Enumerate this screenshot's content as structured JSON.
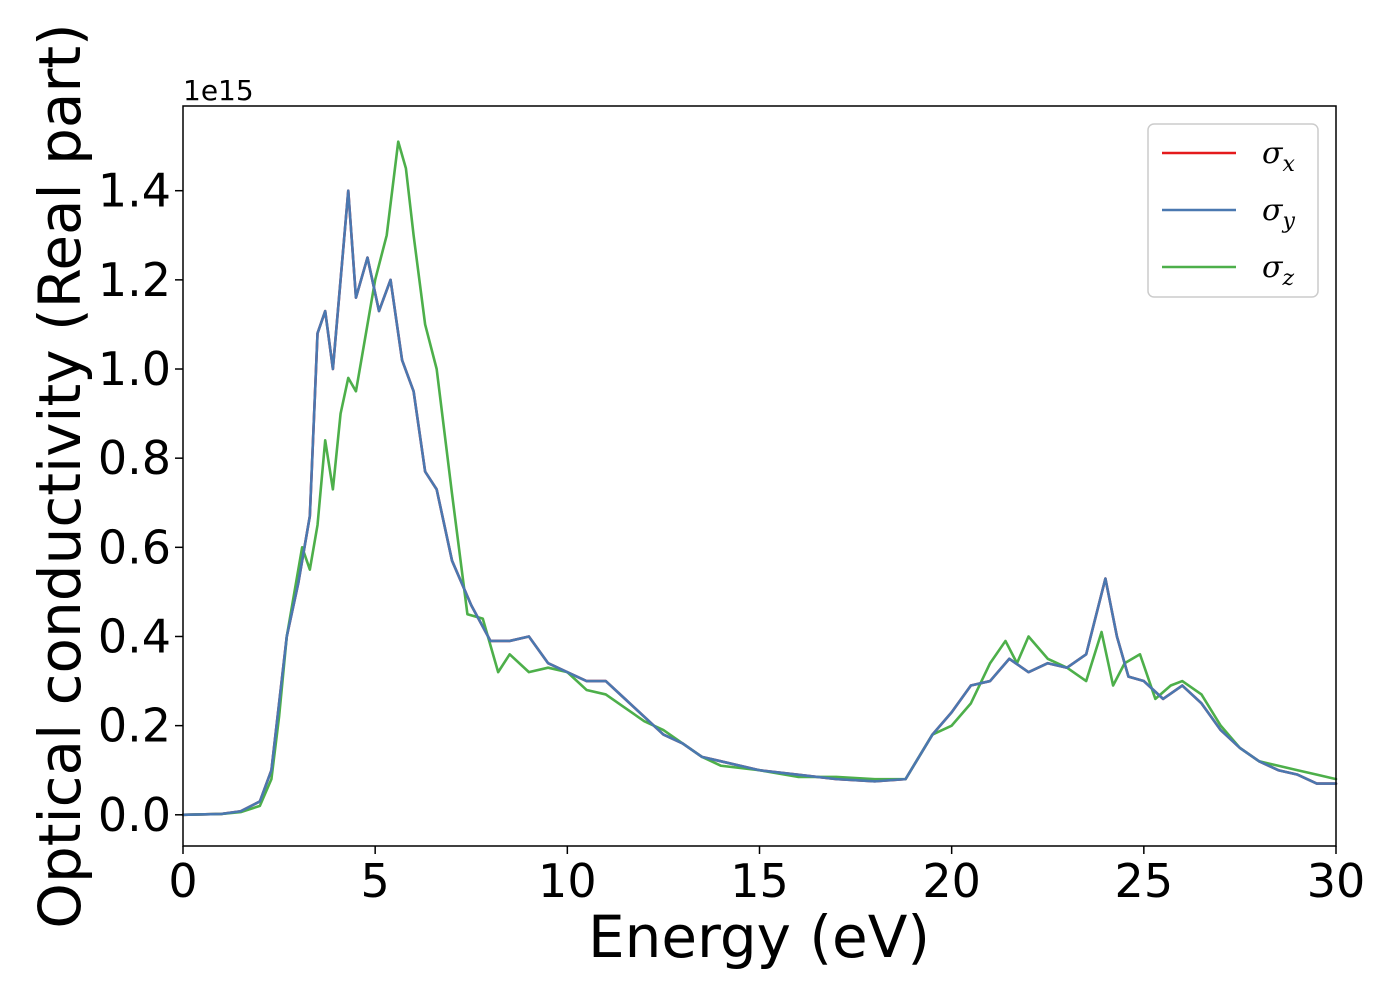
{
  "chart_data": {
    "type": "line",
    "xlabel": "Energy (eV)",
    "ylabel": "Optical conductivity (Real part)",
    "offset_text": "1e15",
    "xlim": [
      0,
      30
    ],
    "ylim": [
      -0.07,
      1.59
    ],
    "xticks": [
      0,
      5,
      10,
      15,
      20,
      25,
      30
    ],
    "yticks": [
      "0.0",
      "0.2",
      "0.4",
      "0.6",
      "0.8",
      "1.0",
      "1.2",
      "1.4"
    ],
    "grid": false,
    "legend_position": "top-right",
    "series": [
      {
        "name": "σ",
        "subscript": "x",
        "color": "#e41a1c",
        "x": [
          0,
          1,
          1.5,
          2,
          2.3,
          2.5,
          2.7,
          3,
          3.3,
          3.5,
          3.7,
          3.9,
          4.1,
          4.3,
          4.5,
          4.8,
          5.1,
          5.4,
          5.7,
          6,
          6.3,
          6.6,
          7,
          7.5,
          8,
          8.5,
          9,
          9.5,
          10,
          10.5,
          11,
          11.5,
          12,
          12.5,
          13,
          13.5,
          14,
          15,
          16,
          17,
          18,
          18.8,
          19.5,
          20,
          20.5,
          21,
          21.5,
          22,
          22.5,
          23,
          23.5,
          24,
          24.3,
          24.6,
          25,
          25.5,
          26,
          26.5,
          27,
          27.5,
          28,
          28.5,
          29,
          29.5,
          30
        ],
        "y": [
          0,
          0.002,
          0.008,
          0.03,
          0.1,
          0.25,
          0.4,
          0.52,
          0.67,
          1.08,
          1.13,
          1.0,
          1.2,
          1.4,
          1.16,
          1.25,
          1.13,
          1.2,
          1.02,
          0.95,
          0.77,
          0.73,
          0.57,
          0.47,
          0.39,
          0.39,
          0.4,
          0.34,
          0.32,
          0.3,
          0.3,
          0.26,
          0.22,
          0.18,
          0.16,
          0.13,
          0.12,
          0.1,
          0.09,
          0.08,
          0.075,
          0.08,
          0.18,
          0.23,
          0.29,
          0.3,
          0.35,
          0.32,
          0.34,
          0.33,
          0.36,
          0.53,
          0.4,
          0.31,
          0.3,
          0.26,
          0.29,
          0.25,
          0.19,
          0.15,
          0.12,
          0.1,
          0.09,
          0.07,
          0.07
        ]
      },
      {
        "name": "σ",
        "subscript": "y",
        "color": "#4a78b0",
        "x": [
          0,
          1,
          1.5,
          2,
          2.3,
          2.5,
          2.7,
          3,
          3.3,
          3.5,
          3.7,
          3.9,
          4.1,
          4.3,
          4.5,
          4.8,
          5.1,
          5.4,
          5.7,
          6,
          6.3,
          6.6,
          7,
          7.5,
          8,
          8.5,
          9,
          9.5,
          10,
          10.5,
          11,
          11.5,
          12,
          12.5,
          13,
          13.5,
          14,
          15,
          16,
          17,
          18,
          18.8,
          19.5,
          20,
          20.5,
          21,
          21.5,
          22,
          22.5,
          23,
          23.5,
          24,
          24.3,
          24.6,
          25,
          25.5,
          26,
          26.5,
          27,
          27.5,
          28,
          28.5,
          29,
          29.5,
          30
        ],
        "y": [
          0,
          0.002,
          0.008,
          0.03,
          0.1,
          0.25,
          0.4,
          0.52,
          0.67,
          1.08,
          1.13,
          1.0,
          1.2,
          1.4,
          1.16,
          1.25,
          1.13,
          1.2,
          1.02,
          0.95,
          0.77,
          0.73,
          0.57,
          0.47,
          0.39,
          0.39,
          0.4,
          0.34,
          0.32,
          0.3,
          0.3,
          0.26,
          0.22,
          0.18,
          0.16,
          0.13,
          0.12,
          0.1,
          0.09,
          0.08,
          0.075,
          0.08,
          0.18,
          0.23,
          0.29,
          0.3,
          0.35,
          0.32,
          0.34,
          0.33,
          0.36,
          0.53,
          0.4,
          0.31,
          0.3,
          0.26,
          0.29,
          0.25,
          0.19,
          0.15,
          0.12,
          0.1,
          0.09,
          0.07,
          0.07
        ]
      },
      {
        "name": "σ",
        "subscript": "z",
        "color": "#4daf4a",
        "x": [
          0,
          1,
          1.5,
          2,
          2.3,
          2.5,
          2.7,
          2.9,
          3.1,
          3.3,
          3.5,
          3.7,
          3.9,
          4.1,
          4.3,
          4.5,
          4.7,
          5.0,
          5.3,
          5.6,
          5.8,
          6.0,
          6.3,
          6.6,
          7.0,
          7.4,
          7.8,
          8.2,
          8.5,
          9.0,
          9.5,
          10,
          10.5,
          11,
          11.5,
          12,
          12.5,
          13,
          13.5,
          14,
          15,
          16,
          17,
          18,
          18.8,
          19.5,
          20,
          20.5,
          21,
          21.4,
          21.7,
          22,
          22.5,
          23,
          23.5,
          23.9,
          24.2,
          24.5,
          24.9,
          25.3,
          25.7,
          26,
          26.5,
          27,
          27.5,
          28,
          28.5,
          29,
          29.5,
          30
        ],
        "y": [
          0,
          0.002,
          0.006,
          0.02,
          0.08,
          0.22,
          0.4,
          0.5,
          0.6,
          0.55,
          0.65,
          0.84,
          0.73,
          0.9,
          0.98,
          0.95,
          1.05,
          1.2,
          1.3,
          1.51,
          1.45,
          1.3,
          1.1,
          1.0,
          0.72,
          0.45,
          0.44,
          0.32,
          0.36,
          0.32,
          0.33,
          0.32,
          0.28,
          0.27,
          0.24,
          0.21,
          0.19,
          0.16,
          0.13,
          0.11,
          0.1,
          0.085,
          0.085,
          0.08,
          0.08,
          0.18,
          0.2,
          0.25,
          0.34,
          0.39,
          0.34,
          0.4,
          0.35,
          0.33,
          0.3,
          0.41,
          0.29,
          0.34,
          0.36,
          0.26,
          0.29,
          0.3,
          0.27,
          0.2,
          0.15,
          0.12,
          0.11,
          0.1,
          0.09,
          0.08
        ]
      }
    ]
  }
}
